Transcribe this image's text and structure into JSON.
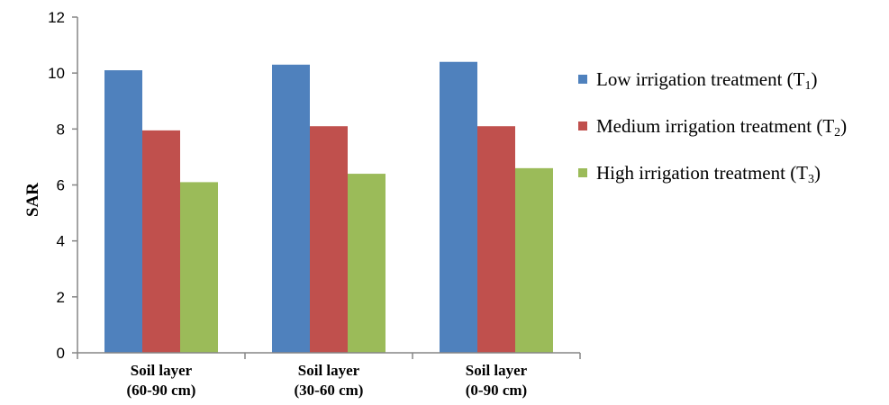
{
  "chart_data": {
    "type": "bar",
    "title": "",
    "xlabel": "",
    "ylabel": "SAR",
    "ylim": [
      0,
      12
    ],
    "yticks": [
      0,
      2,
      4,
      6,
      8,
      10,
      12
    ],
    "grid": false,
    "legend_position": "right",
    "categories": [
      [
        "Soil layer",
        "(60-90 cm)"
      ],
      [
        "Soil layer",
        "(30-60 cm)"
      ],
      [
        "Soil layer",
        "(0-90 cm)"
      ]
    ],
    "series": [
      {
        "name": "Low irrigation treatment (T1)",
        "label_main": "Low irrigation treatment (T",
        "label_sub": "1",
        "label_end": ")",
        "color": "#4f81bd",
        "values": [
          10.1,
          10.3,
          10.4
        ]
      },
      {
        "name": "Medium irrigation treatment (T2)",
        "label_main": "Medium irrigation treatment (T",
        "label_sub": "2",
        "label_end": ")",
        "color": "#c0504d",
        "values": [
          7.95,
          8.1,
          8.1
        ]
      },
      {
        "name": "High  irrigation treatment (T3)",
        "label_main": "High  irrigation treatment (T",
        "label_sub": "3",
        "label_end": ")",
        "color": "#9bbb59",
        "values": [
          6.1,
          6.4,
          6.6
        ]
      }
    ]
  }
}
